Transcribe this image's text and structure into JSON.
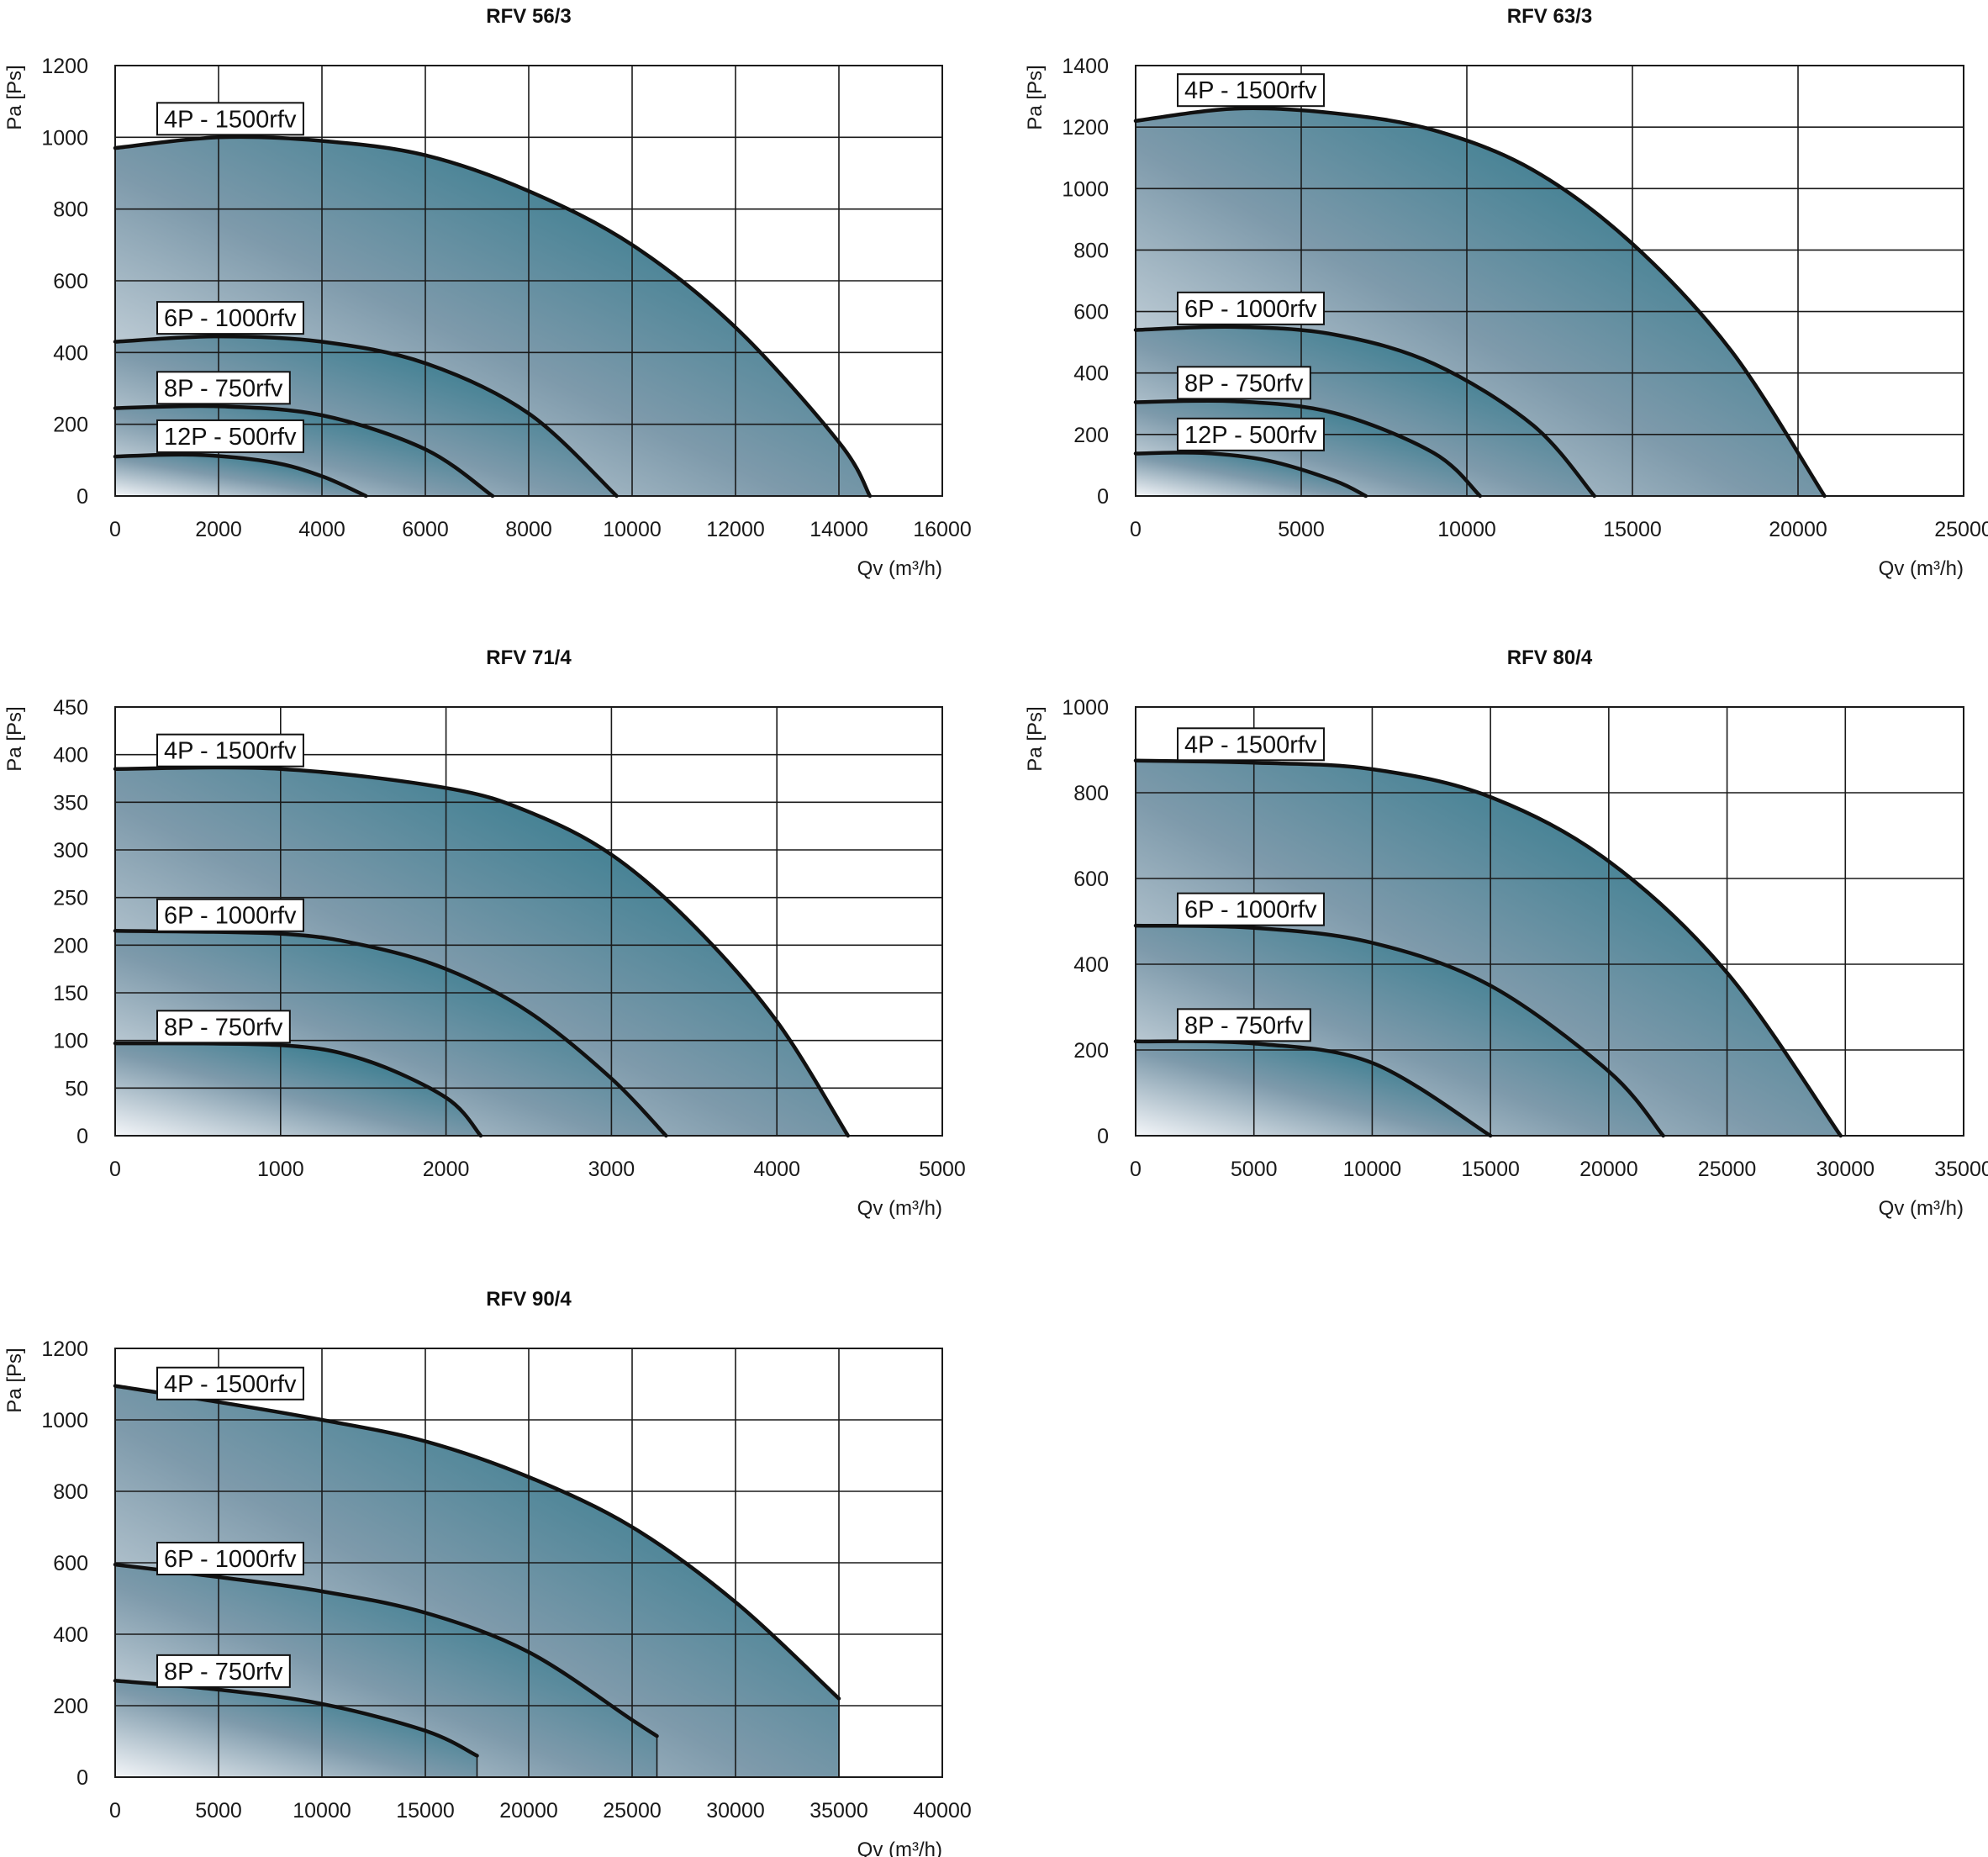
{
  "colors": {
    "fill_light": "#f4f6f9",
    "fill_mid": "#7e9aab",
    "fill_dark": "#0f6b7f",
    "line": "#111111",
    "grid": "#1a1a1a"
  },
  "chart_data": [
    {
      "type": "area",
      "title": "RFV 56/3",
      "xlabel": "Qv (m³/h)",
      "ylabel": "Pa [Ps]",
      "xlim": [
        0,
        16000
      ],
      "ylim": [
        0,
        1200
      ],
      "xticks": [
        0,
        2000,
        4000,
        6000,
        8000,
        10000,
        12000,
        14000,
        16000
      ],
      "yticks": [
        0,
        200,
        400,
        600,
        800,
        1000,
        1200
      ],
      "series": [
        {
          "name": "4P - 1500rfv",
          "x": [
            0,
            2000,
            4000,
            6000,
            8000,
            10000,
            12000,
            14000,
            14600
          ],
          "y": [
            970,
            1000,
            990,
            950,
            850,
            700,
            470,
            150,
            0
          ]
        },
        {
          "name": "6P - 1000rfv",
          "x": [
            0,
            2000,
            4000,
            6000,
            8000,
            9700
          ],
          "y": [
            430,
            445,
            430,
            370,
            230,
            0
          ]
        },
        {
          "name": "8P - 750rfv",
          "x": [
            0,
            2000,
            4000,
            6000,
            7300
          ],
          "y": [
            245,
            250,
            225,
            130,
            0
          ]
        },
        {
          "name": "12P - 500rfv",
          "x": [
            0,
            1500,
            3000,
            4000,
            4850
          ],
          "y": [
            110,
            115,
            95,
            55,
            0
          ]
        }
      ]
    },
    {
      "type": "area",
      "title": "RFV 63/3",
      "xlabel": "Qv (m³/h)",
      "ylabel": "Pa [Ps]",
      "xlim": [
        0,
        25000
      ],
      "ylim": [
        0,
        1400
      ],
      "xticks": [
        0,
        5000,
        10000,
        15000,
        20000,
        25000
      ],
      "yticks": [
        0,
        200,
        400,
        600,
        800,
        1000,
        1200,
        1400
      ],
      "series": [
        {
          "name": "4P - 1500rfv",
          "x": [
            0,
            3000,
            6000,
            9000,
            12000,
            15000,
            18000,
            20800
          ],
          "y": [
            1220,
            1260,
            1245,
            1190,
            1060,
            820,
            470,
            0
          ]
        },
        {
          "name": "6P - 1000rfv",
          "x": [
            0,
            3000,
            6000,
            9000,
            12000,
            13850
          ],
          "y": [
            540,
            550,
            525,
            430,
            230,
            0
          ]
        },
        {
          "name": "8P - 750rfv",
          "x": [
            0,
            3000,
            6000,
            9000,
            10400
          ],
          "y": [
            305,
            308,
            270,
            140,
            0
          ]
        },
        {
          "name": "12P - 500rfv",
          "x": [
            0,
            2000,
            4000,
            6000,
            6950
          ],
          "y": [
            138,
            140,
            115,
            50,
            0
          ]
        }
      ]
    },
    {
      "type": "area",
      "title": "RFV 71/4",
      "xlabel": "Qv (m³/h)",
      "ylabel": "Pa [Ps]",
      "xlim": [
        0,
        5000
      ],
      "ylim": [
        0,
        450
      ],
      "xticks": [
        0,
        1000,
        2000,
        3000,
        4000,
        5000
      ],
      "yticks": [
        0,
        50,
        100,
        150,
        200,
        250,
        300,
        350,
        400,
        450
      ],
      "series": [
        {
          "name": "4P - 1500rfv",
          "x": [
            0,
            1000,
            2000,
            2500,
            3000,
            3500,
            4000,
            4430
          ],
          "y": [
            385,
            385,
            365,
            340,
            295,
            220,
            120,
            0
          ]
        },
        {
          "name": "6P - 1000rfv",
          "x": [
            0,
            1000,
            1500,
            2000,
            2500,
            3000,
            3330
          ],
          "y": [
            215,
            212,
            200,
            175,
            130,
            60,
            0
          ]
        },
        {
          "name": "8P - 750rfv",
          "x": [
            0,
            1000,
            1500,
            2000,
            2210
          ],
          "y": [
            97,
            95,
            80,
            40,
            0
          ]
        }
      ]
    },
    {
      "type": "area",
      "title": "RFV 80/4",
      "xlabel": "Qv (m³/h)",
      "ylabel": "Pa [Ps]",
      "xlim": [
        0,
        35000
      ],
      "ylim": [
        0,
        1000
      ],
      "xticks": [
        0,
        5000,
        10000,
        15000,
        20000,
        25000,
        30000,
        35000
      ],
      "yticks": [
        0,
        200,
        400,
        600,
        800,
        1000
      ],
      "series": [
        {
          "name": "4P - 1500rfv",
          "x": [
            0,
            5000,
            10000,
            15000,
            20000,
            25000,
            29800
          ],
          "y": [
            875,
            870,
            855,
            790,
            640,
            380,
            0
          ]
        },
        {
          "name": "6P - 1000rfv",
          "x": [
            0,
            5000,
            10000,
            15000,
            20000,
            22300
          ],
          "y": [
            490,
            485,
            450,
            350,
            150,
            0
          ]
        },
        {
          "name": "8P - 750rfv",
          "x": [
            0,
            5000,
            10000,
            15000
          ],
          "y": [
            220,
            215,
            170,
            0
          ]
        }
      ]
    },
    {
      "type": "area",
      "title": "RFV 90/4",
      "xlabel": "Qv (m³/h)",
      "ylabel": "Pa [Ps]",
      "xlim": [
        0,
        40000
      ],
      "ylim": [
        0,
        1200
      ],
      "xticks": [
        0,
        5000,
        10000,
        15000,
        20000,
        25000,
        30000,
        35000,
        40000
      ],
      "yticks": [
        0,
        200,
        400,
        600,
        800,
        1000,
        1200
      ],
      "series": [
        {
          "name": "4P - 1500rfv",
          "x": [
            0,
            5000,
            10000,
            15000,
            20000,
            25000,
            30000,
            35000
          ],
          "y": [
            1095,
            1050,
            1000,
            940,
            840,
            700,
            490,
            220
          ]
        },
        {
          "name": "6P - 1000rfv",
          "x": [
            0,
            5000,
            10000,
            15000,
            20000,
            25000,
            26200
          ],
          "y": [
            595,
            560,
            520,
            460,
            350,
            160,
            115
          ]
        },
        {
          "name": "8P - 750rfv",
          "x": [
            0,
            5000,
            10000,
            15000,
            17500
          ],
          "y": [
            270,
            245,
            205,
            130,
            60
          ]
        }
      ]
    }
  ]
}
